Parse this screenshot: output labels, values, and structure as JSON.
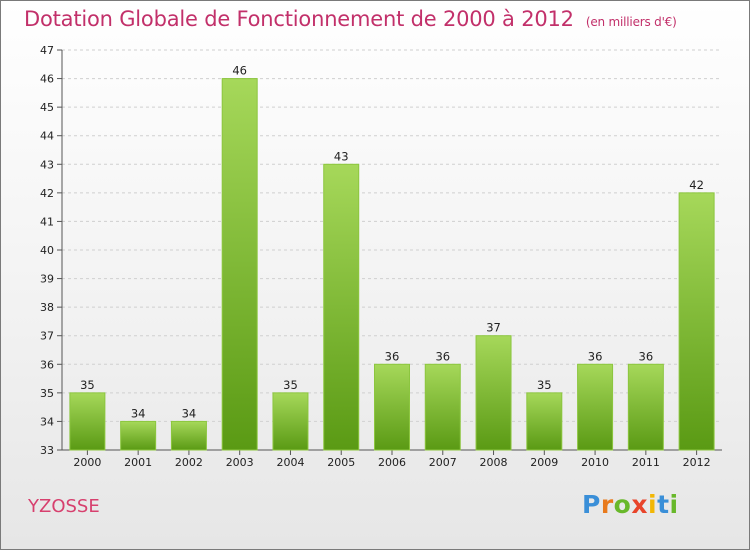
{
  "title": "Dotation Globale de Fonctionnement de 2000 à 2012",
  "subtitle": "(en milliers d'€)",
  "city": "YZOSSE",
  "brand": {
    "text": "Proxiti",
    "letters": [
      "P",
      "r",
      "o",
      "x",
      "i",
      "t",
      "i"
    ]
  },
  "colors": {
    "title": "#c2306a",
    "bar_top": "#a6d85a",
    "bar_bottom": "#5a9a14",
    "city": "#d7406e"
  },
  "chart_data": {
    "type": "bar",
    "title": "Dotation Globale de Fonctionnement de 2000 à 2012",
    "subtitle": "(en milliers d'€)",
    "categories": [
      "2000",
      "2001",
      "2002",
      "2003",
      "2004",
      "2005",
      "2006",
      "2007",
      "2008",
      "2009",
      "2010",
      "2011",
      "2012"
    ],
    "values": [
      35,
      34,
      34,
      46,
      35,
      43,
      36,
      36,
      37,
      35,
      36,
      36,
      42
    ],
    "ylim": [
      33,
      47
    ],
    "yticks": [
      33,
      34,
      35,
      36,
      37,
      38,
      39,
      40,
      41,
      42,
      43,
      44,
      45,
      46,
      47
    ],
    "grid": true,
    "xlabel": "",
    "ylabel": ""
  }
}
